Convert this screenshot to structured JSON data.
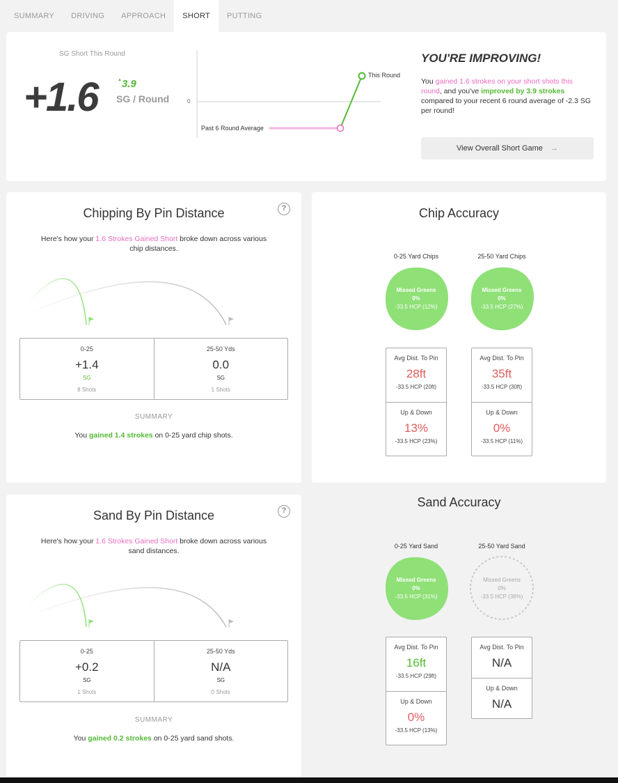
{
  "tabs": [
    "SUMMARY",
    "DRIVING",
    "APPROACH",
    "SHORT",
    "PUTTING"
  ],
  "active_tab": "SHORT",
  "header": {
    "sg_label": "SG Short This Round",
    "sg_value": "+1.6",
    "delta_arrow": "▲",
    "delta_value": "3.9",
    "per_round": "SG / Round",
    "chart": {
      "zero_label": "0",
      "past_label": "Past 6 Round Average",
      "this_label": "This Round"
    },
    "improving_title": "YOU'RE IMPROVING!",
    "msg": {
      "p1": "You ",
      "p2": "gained 1.6 strokes on your short shots this round",
      "p3": ", and you've ",
      "p4": "improved by 3.9 strokes",
      "p5": " compared to your recent 6 round average of -2.3 SG per round!"
    },
    "view_button": "View Overall Short Game",
    "arrow": "→"
  },
  "chipping": {
    "title": "Chipping By Pin Distance",
    "help": "?",
    "desc_p1": "Here's how your ",
    "desc_p2": "1.6 Strokes Gained Short",
    "desc_p3": " broke down across various chip distances.",
    "cells": [
      {
        "label": "0-25",
        "value": "+1.4",
        "unit": "SG",
        "shots": "8 Shots",
        "color": "#55b936"
      },
      {
        "label": "25-50 Yds",
        "value": "0.0",
        "unit": "SG",
        "shots": "1 Shots",
        "color": "#333333"
      }
    ],
    "summary_label": "SUMMARY",
    "summary_p1": "You ",
    "summary_p2": "gained 1.4 strokes",
    "summary_p3": " on 0-25 yard chip shots."
  },
  "chip_accuracy": {
    "title": "Chip Accuracy",
    "cols": [
      {
        "label": "0-25 Yard Chips",
        "blob_l1": "Missed Greens",
        "blob_l2": "0%",
        "blob_l3": "-33.5 HCP (12%)",
        "avg_label": "Avg Dist. To Pin",
        "avg_value": "28ft",
        "avg_hcp": "-33.5 HCP (20ft)",
        "ud_label": "Up & Down",
        "ud_value": "13%",
        "ud_hcp": "-33.5 HCP (23%)"
      },
      {
        "label": "25-50 Yard Chips",
        "blob_l1": "Missed Greens",
        "blob_l2": "0%",
        "blob_l3": "-33.5 HCP (27%)",
        "avg_label": "Avg Dist. To Pin",
        "avg_value": "35ft",
        "avg_hcp": "-33.5 HCP (30ft)",
        "ud_label": "Up & Down",
        "ud_value": "0%",
        "ud_hcp": "-33.5 HCP (11%)"
      }
    ]
  },
  "sand": {
    "title": "Sand By Pin Distance",
    "help": "?",
    "desc_p1": "Here's how your ",
    "desc_p2": "1.6 Strokes Gained Short",
    "desc_p3": " broke down across various sand distances.",
    "cells": [
      {
        "label": "0-25",
        "value": "+0.2",
        "unit": "SG",
        "shots": "1 Shots",
        "color": "#333333"
      },
      {
        "label": "25-50 Yds",
        "value": "N/A",
        "unit": "SG",
        "shots": "0 Shots",
        "color": "#333333"
      }
    ],
    "summary_label": "SUMMARY",
    "summary_p1": "You ",
    "summary_p2": "gained 0.2 strokes",
    "summary_p3": " on 0-25 yard sand shots."
  },
  "sand_accuracy": {
    "title": "Sand Accuracy",
    "cols": [
      {
        "label": "0-25 Yard Sand",
        "blob_l1": "Missed Greens",
        "blob_l2": "0%",
        "blob_l3": "-33.5 HCP (31%)",
        "avg_label": "Avg Dist. To Pin",
        "avg_value": "16ft",
        "avg_hcp": "-33.5 HCP (29ft)",
        "ud_label": "Up & Down",
        "ud_value": "0%",
        "ud_hcp": "-33.5 HCP (13%)"
      },
      {
        "label": "25-50 Yard Sand",
        "blob_l1": "Missed Greens",
        "blob_l2": "0%",
        "blob_l3": "-33.5 HCP (38%)",
        "avg_label": "Avg Dist. To Pin",
        "avg_value": "N/A",
        "ud_label": "Up & Down",
        "ud_value": "N/A"
      }
    ]
  },
  "colors": {
    "green": "#55b936",
    "pink": "#e96bc1",
    "red": "#e15c5c",
    "blob_green": "#8fe077"
  }
}
